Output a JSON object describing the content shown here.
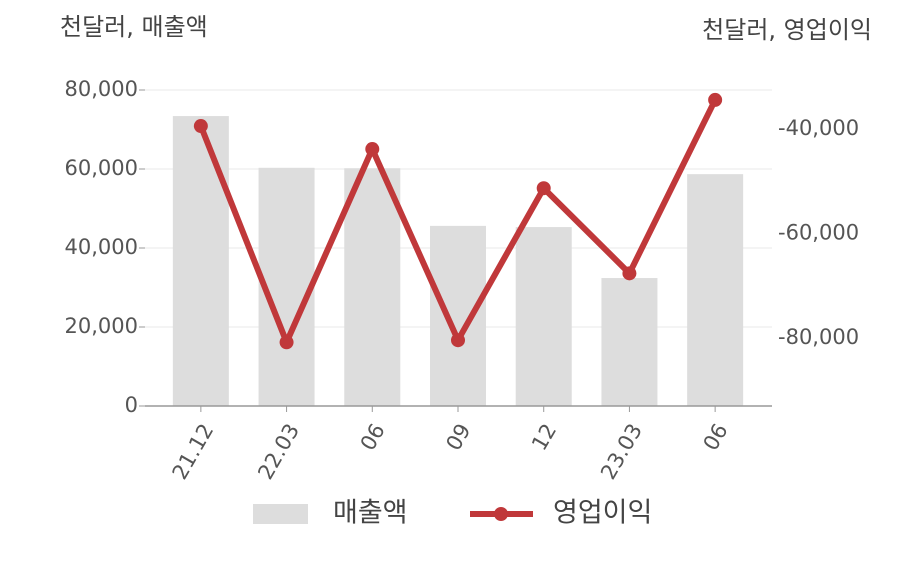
{
  "chart_data": {
    "type": "bar_line",
    "y_label": "천달러, 매출액",
    "y2_label": "천달러, 영업이익",
    "categories": [
      "21.12",
      "22.03",
      "06",
      "09",
      "12",
      "23.03",
      "06"
    ],
    "series": [
      {
        "name": "매출액",
        "type": "bar",
        "color": "#dddddd",
        "values": [
          73400,
          60300,
          60200,
          45600,
          45300,
          32400,
          58700
        ]
      },
      {
        "name": "영업이익",
        "type": "line",
        "axis": "y2",
        "color": "#c0383a",
        "values": [
          -39400,
          -80800,
          -43800,
          -80400,
          -51300,
          -67600,
          -34400
        ]
      }
    ],
    "ylim": [
      0,
      80000
    ],
    "yticks": [
      {
        "value": 0,
        "label": "0"
      },
      {
        "value": 20000,
        "label": "20,000"
      },
      {
        "value": 40000,
        "label": "40,000"
      },
      {
        "value": 60000,
        "label": "60,000"
      },
      {
        "value": 80000,
        "label": "80,000"
      }
    ],
    "y2lim": [
      -93000,
      -32500
    ],
    "y2ticks": [
      {
        "value": -80000,
        "label": "-80,000"
      },
      {
        "value": -60000,
        "label": "-60,000"
      },
      {
        "value": -40000,
        "label": "-40,000"
      }
    ],
    "grid": true
  }
}
